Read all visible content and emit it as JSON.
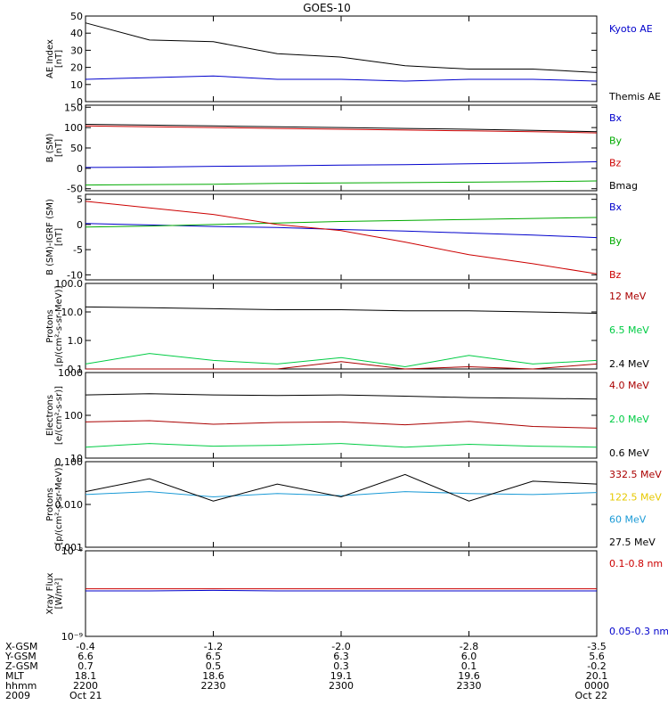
{
  "title": "GOES-10",
  "panels": [
    {
      "ylabel": [
        "AE Index",
        "[nT]"
      ],
      "scale": "linear",
      "ylim": [
        0,
        50
      ],
      "ticks": [
        "0",
        "10",
        "20",
        "30",
        "40",
        "50"
      ],
      "tick_values": [
        0,
        10,
        20,
        30,
        40,
        50
      ],
      "legend": [
        {
          "text": "Kyoto AE",
          "color": "#0000cc"
        },
        {
          "text": "Themis AE",
          "color": "#000000"
        }
      ],
      "series_keys": [
        "kyoto_ae",
        "themis_ae"
      ]
    },
    {
      "ylabel": [
        "B (SM)",
        "[nT]"
      ],
      "scale": "linear",
      "ylim": [
        -55,
        155
      ],
      "ticks": [
        "-50",
        "0",
        "50",
        "100",
        "150"
      ],
      "tick_values": [
        -50,
        0,
        50,
        100,
        150
      ],
      "legend": [
        {
          "text": "Bx",
          "color": "#0000cc"
        },
        {
          "text": "By",
          "color": "#00aa00"
        },
        {
          "text": "Bz",
          "color": "#cc0000"
        },
        {
          "text": "Bmag",
          "color": "#000000"
        }
      ],
      "series_keys": [
        "b_bmag",
        "b_bx",
        "b_by",
        "b_bz"
      ]
    },
    {
      "ylabel": [
        "B (SM)-IGRF (SM)",
        "[nT]"
      ],
      "scale": "linear",
      "ylim": [
        -11,
        6
      ],
      "ticks": [
        "-10",
        "-5",
        "0",
        "5"
      ],
      "tick_values": [
        -10,
        -5,
        0,
        5
      ],
      "legend": [
        {
          "text": "Bx",
          "color": "#0000cc"
        },
        {
          "text": "By",
          "color": "#00aa00"
        },
        {
          "text": "Bz",
          "color": "#cc0000"
        }
      ],
      "series_keys": [
        "d_bx",
        "d_by",
        "d_bz"
      ]
    },
    {
      "ylabel": [
        "Protons",
        "[p/(cm²-s-sr-MeV)]"
      ],
      "scale": "log",
      "ylim": [
        0.1,
        100
      ],
      "ticks": [
        "0.1",
        "1.0",
        "10.0",
        "100.0"
      ],
      "tick_values": [
        0.1,
        1,
        10,
        100
      ],
      "legend": [
        {
          "text": "12 MeV",
          "color": "#aa0000"
        },
        {
          "text": "6.5 MeV",
          "color": "#00cc44"
        },
        {
          "text": "2.4 MeV",
          "color": "#000000"
        }
      ],
      "series_keys": [
        "p_24",
        "p_65",
        "p_12"
      ]
    },
    {
      "ylabel": [
        "Electrons",
        "[e/(cm²-s-sr)]"
      ],
      "scale": "log",
      "ylim": [
        10,
        1000
      ],
      "ticks": [
        "10",
        "100",
        "1000"
      ],
      "tick_values": [
        10,
        100,
        1000
      ],
      "legend": [
        {
          "text": "4.0 MeV",
          "color": "#aa0000"
        },
        {
          "text": "2.0 MeV",
          "color": "#00cc44"
        },
        {
          "text": "0.6 MeV",
          "color": "#000000"
        }
      ],
      "series_keys": [
        "e_06",
        "e_20",
        "e_40"
      ]
    },
    {
      "ylabel": [
        "Protons",
        "[p/(cm²-s-sr-MeV)]"
      ],
      "scale": "log",
      "ylim": [
        0.001,
        0.1
      ],
      "ticks": [
        "0.001",
        "0.010",
        "0.100"
      ],
      "tick_values": [
        0.001,
        0.01,
        0.1
      ],
      "legend": [
        {
          "text": "332.5 MeV",
          "color": "#aa0000"
        },
        {
          "text": "122.5 MeV",
          "color": "#e6c800"
        },
        {
          "text": "60 MeV",
          "color": "#1a9ad6"
        },
        {
          "text": "27.5 MeV",
          "color": "#000000"
        }
      ],
      "series_keys": [
        "hp_60",
        "hp_275"
      ]
    },
    {
      "ylabel": [
        "Xray Flux",
        "[W/m²]"
      ],
      "scale": "log",
      "ylim": [
        1e-09,
        1e-08
      ],
      "ticks": [
        "10⁻⁹",
        "10⁻⁸"
      ],
      "tick_values": [
        1e-09,
        1e-08
      ],
      "legend": [
        {
          "text": "0.1-0.8 nm",
          "color": "#cc0000"
        },
        {
          "text": "0.05-0.3 nm",
          "color": "#0000cc"
        }
      ],
      "series_keys": [
        "xray_long",
        "xray_short"
      ]
    }
  ],
  "xaxis": {
    "range": [
      "2009-10-21 22:00",
      "2009-10-22 00:00"
    ],
    "row_labels": [
      "X-GSM",
      "Y-GSM",
      "Z-GSM",
      "MLT",
      "hhmm",
      "2009"
    ],
    "columns": [
      {
        "time": "2009-10-21 22:00",
        "values": [
          "-0.4",
          "6.6",
          "0.7",
          "18.1",
          "2200",
          "Oct 21"
        ]
      },
      {
        "time": "2009-10-21 22:30",
        "values": [
          "-1.2",
          "6.5",
          "0.5",
          "18.6",
          "2230",
          ""
        ]
      },
      {
        "time": "2009-10-21 23:00",
        "values": [
          "-2.0",
          "6.3",
          "0.3",
          "19.1",
          "2300",
          ""
        ]
      },
      {
        "time": "2009-10-21 23:30",
        "values": [
          "-2.8",
          "6.0",
          "0.1",
          "19.6",
          "2330",
          ""
        ]
      },
      {
        "time": "2009-10-22 00:00",
        "values": [
          "-3.5",
          "5.6",
          "-0.2",
          "20.1",
          "0000",
          "Oct 22"
        ]
      }
    ]
  },
  "chart_data": {
    "type": "line",
    "title": "GOES-10",
    "x": [
      "2009-10-21 22:00",
      "2009-10-21 22:15",
      "2009-10-21 22:30",
      "2009-10-21 22:45",
      "2009-10-21 23:00",
      "2009-10-21 23:15",
      "2009-10-21 23:30",
      "2009-10-21 23:45",
      "2009-10-22 00:00"
    ],
    "series": [
      {
        "key": "kyoto_ae",
        "panel": 0,
        "name": "Kyoto AE",
        "color": "#0000cc",
        "values": [
          13,
          14,
          15,
          13,
          13,
          12,
          13,
          13,
          12
        ]
      },
      {
        "key": "themis_ae",
        "panel": 0,
        "name": "Themis AE",
        "color": "#000000",
        "values": [
          46,
          36,
          35,
          28,
          26,
          21,
          19,
          19,
          17
        ]
      },
      {
        "key": "b_bmag",
        "panel": 1,
        "name": "Bmag",
        "color": "#000000",
        "values": [
          108,
          106,
          104,
          102,
          100,
          98,
          96,
          93,
          90
        ]
      },
      {
        "key": "b_bx",
        "panel": 1,
        "name": "Bx",
        "color": "#0000cc",
        "values": [
          2,
          3,
          5,
          6,
          8,
          9,
          11,
          13,
          16
        ]
      },
      {
        "key": "b_by",
        "panel": 1,
        "name": "By",
        "color": "#00aa00",
        "values": [
          -41,
          -40,
          -39,
          -37,
          -36,
          -35,
          -34,
          -33,
          -31
        ]
      },
      {
        "key": "b_bz",
        "panel": 1,
        "name": "Bz",
        "color": "#cc0000",
        "values": [
          104,
          102,
          100,
          98,
          96,
          94,
          92,
          90,
          87
        ]
      },
      {
        "key": "d_bx",
        "panel": 2,
        "name": "Bx",
        "color": "#0000cc",
        "values": [
          0.2,
          -0.1,
          -0.4,
          -0.6,
          -1.0,
          -1.3,
          -1.7,
          -2.1,
          -2.6
        ]
      },
      {
        "key": "d_by",
        "panel": 2,
        "name": "By",
        "color": "#00aa00",
        "values": [
          -0.5,
          -0.3,
          0.0,
          0.3,
          0.6,
          0.8,
          1.0,
          1.2,
          1.4
        ]
      },
      {
        "key": "d_bz",
        "panel": 2,
        "name": "Bz",
        "color": "#cc0000",
        "values": [
          4.6,
          3.3,
          2.0,
          0.0,
          -1.2,
          -3.5,
          -6.0,
          -7.8,
          -9.8
        ]
      },
      {
        "key": "p_24",
        "panel": 3,
        "name": "2.4 MeV",
        "color": "#000000",
        "values": [
          15,
          14,
          13,
          12,
          12,
          11,
          11,
          10,
          9
        ]
      },
      {
        "key": "p_65",
        "panel": 3,
        "name": "6.5 MeV",
        "color": "#00cc44",
        "values": [
          0.15,
          0.35,
          0.2,
          0.15,
          0.25,
          0.12,
          0.3,
          0.15,
          0.2
        ]
      },
      {
        "key": "p_12",
        "panel": 3,
        "name": "12 MeV",
        "color": "#aa0000",
        "values": [
          0.1,
          0.1,
          0.1,
          0.1,
          0.18,
          0.1,
          0.12,
          0.1,
          0.15
        ]
      },
      {
        "key": "e_06",
        "panel": 4,
        "name": "0.6 MeV",
        "color": "#000000",
        "values": [
          300,
          320,
          300,
          290,
          300,
          280,
          260,
          250,
          240
        ]
      },
      {
        "key": "e_20",
        "panel": 4,
        "name": "2.0 MeV",
        "color": "#00cc44",
        "values": [
          18,
          22,
          19,
          20,
          22,
          18,
          21,
          19,
          18
        ]
      },
      {
        "key": "e_40",
        "panel": 4,
        "name": "4.0 MeV",
        "color": "#aa0000",
        "values": [
          70,
          75,
          62,
          68,
          70,
          60,
          72,
          55,
          50
        ]
      },
      {
        "key": "hp_60",
        "panel": 5,
        "name": "60 MeV",
        "color": "#1a9ad6",
        "values": [
          0.017,
          0.02,
          0.015,
          0.018,
          0.016,
          0.02,
          0.018,
          0.017,
          0.019
        ]
      },
      {
        "key": "hp_275",
        "panel": 5,
        "name": "27.5 MeV",
        "color": "#000000",
        "values": [
          0.02,
          0.04,
          0.012,
          0.03,
          0.015,
          0.05,
          0.012,
          0.035,
          0.03
        ]
      },
      {
        "key": "xray_long",
        "panel": 6,
        "name": "0.1-0.8 nm",
        "color": "#cc0000",
        "values": [
          3.6e-09,
          3.6e-09,
          3.6e-09,
          3.6e-09,
          3.6e-09,
          3.6e-09,
          3.6e-09,
          3.6e-09,
          3.6e-09
        ]
      },
      {
        "key": "xray_short",
        "panel": 6,
        "name": "0.05-0.3 nm",
        "color": "#0000cc",
        "values": [
          3.4e-09,
          3.4e-09,
          3.45e-09,
          3.4e-09,
          3.4e-09,
          3.4e-09,
          3.4e-09,
          3.4e-09,
          3.4e-09
        ]
      }
    ]
  }
}
